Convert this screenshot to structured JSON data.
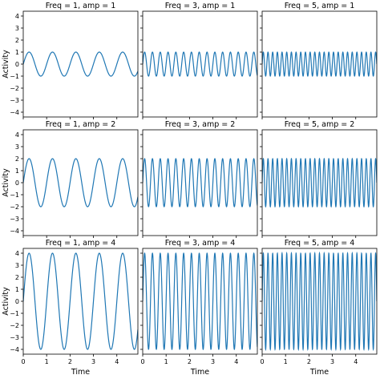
{
  "chart_data": {
    "type": "line",
    "layout": "3x3 grid, shared axes",
    "grid": false,
    "line_color": "#1f77b4",
    "xlabel": "Time",
    "ylabel": "Activity",
    "xlim": [
      0,
      4.9
    ],
    "ylim": [
      -4.4,
      4.4
    ],
    "xticks": [
      "0",
      "1",
      "2",
      "3",
      "4"
    ],
    "yticks": [
      "-4",
      "-3",
      "-2",
      "-1",
      "0",
      "1",
      "2",
      "3",
      "4"
    ],
    "function": "amp * sin(2*pi*freq*t)",
    "panels": [
      {
        "title": "Freq = 1, amp = 1",
        "freq": 1,
        "amp": 1
      },
      {
        "title": "Freq = 3, amp = 1",
        "freq": 3,
        "amp": 1
      },
      {
        "title": "Freq = 5, amp = 1",
        "freq": 5,
        "amp": 1
      },
      {
        "title": "Freq = 1, amp = 2",
        "freq": 1,
        "amp": 2
      },
      {
        "title": "Freq = 3, amp = 2",
        "freq": 3,
        "amp": 2
      },
      {
        "title": "Freq = 5, amp = 2",
        "freq": 5,
        "amp": 2
      },
      {
        "title": "Freq = 1, amp = 4",
        "freq": 1,
        "amp": 4
      },
      {
        "title": "Freq = 3, amp = 4",
        "freq": 3,
        "amp": 4
      },
      {
        "title": "Freq = 5, amp = 4",
        "freq": 5,
        "amp": 4
      }
    ]
  }
}
